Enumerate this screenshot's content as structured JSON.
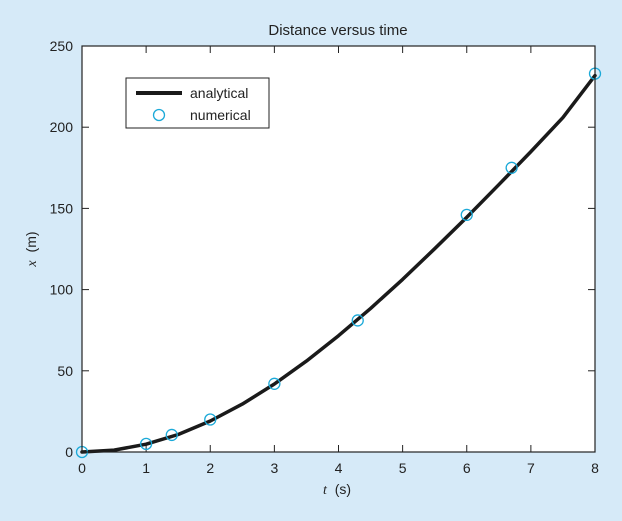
{
  "colors": {
    "background": "#d6eaf8",
    "plot_area": "#ffffff",
    "line": "#1a1a1a",
    "marker": "#1ba9d8"
  },
  "chart_data": {
    "type": "line",
    "title": "Distance versus time",
    "xlabel": {
      "variable": "t",
      "unit": "(s)"
    },
    "ylabel": {
      "variable": "x",
      "unit": "(m)"
    },
    "xlim": [
      0,
      8
    ],
    "ylim": [
      0,
      250
    ],
    "xticks": [
      0,
      1,
      2,
      3,
      4,
      5,
      6,
      7,
      8
    ],
    "yticks": [
      0,
      50,
      100,
      150,
      200,
      250
    ],
    "grid": false,
    "legend_position": "top-left",
    "series": [
      {
        "name": "analytical",
        "style": "line",
        "x": [
          0,
          0.5,
          1,
          1.5,
          2,
          2.5,
          3,
          3.5,
          4,
          4.5,
          5,
          5.5,
          6,
          6.5,
          7,
          7.5,
          8
        ],
        "y": [
          0,
          1.2,
          4.8,
          10.8,
          19.1,
          29.5,
          41.9,
          56.0,
          71.6,
          88.4,
          106.3,
          125.2,
          144.6,
          164.6,
          185.0,
          205.9,
          231.8
        ]
      },
      {
        "name": "numerical",
        "style": "markers",
        "x": [
          0,
          1,
          1.4,
          2,
          3,
          4.3,
          6,
          6.7,
          8
        ],
        "y": [
          0,
          5,
          10.5,
          20,
          42,
          81,
          146,
          175,
          233
        ]
      }
    ]
  }
}
